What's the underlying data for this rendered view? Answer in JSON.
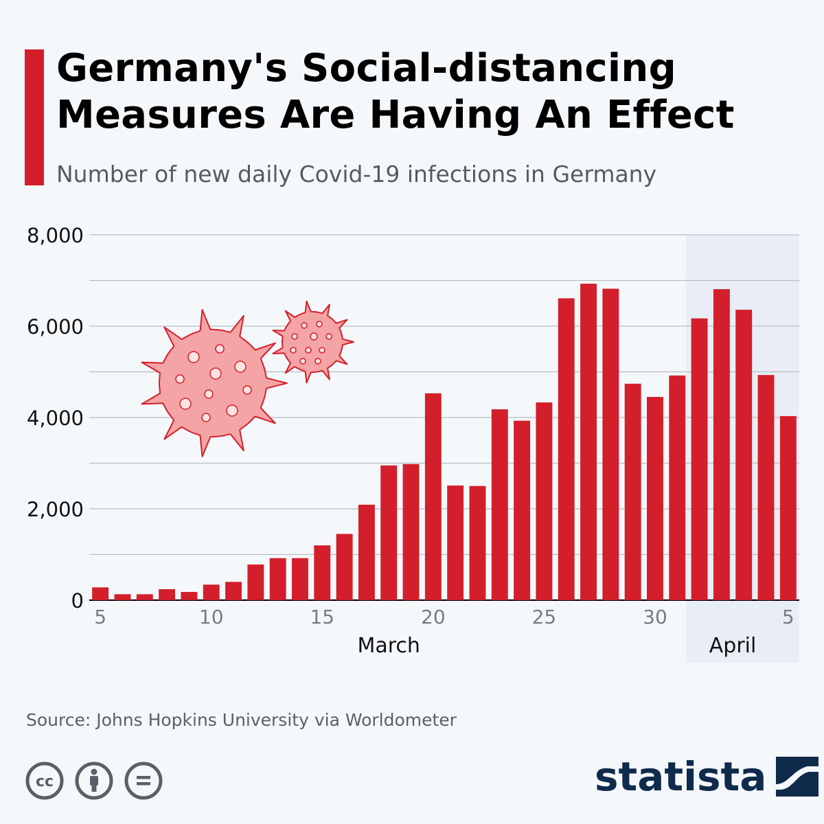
{
  "header": {
    "title": "Germany's Social-distancing Measures Are Having An Effect",
    "subtitle": "Number of new daily Covid-19 infections in Germany"
  },
  "chart_data": {
    "type": "bar",
    "title": "Germany's Social-distancing Measures Are Having An Effect",
    "subtitle": "Number of new daily Covid-19 infections in Germany",
    "categories": [
      "Mar 5",
      "Mar 6",
      "Mar 7",
      "Mar 8",
      "Mar 9",
      "Mar 10",
      "Mar 11",
      "Mar 12",
      "Mar 13",
      "Mar 14",
      "Mar 15",
      "Mar 16",
      "Mar 17",
      "Mar 18",
      "Mar 19",
      "Mar 20",
      "Mar 21",
      "Mar 22",
      "Mar 23",
      "Mar 24",
      "Mar 25",
      "Mar 26",
      "Mar 27",
      "Mar 28",
      "Mar 29",
      "Mar 30",
      "Mar 31",
      "Apr 1",
      "Apr 2",
      "Apr 3",
      "Apr 4",
      "Apr 5"
    ],
    "values": [
      280,
      130,
      130,
      240,
      180,
      340,
      400,
      780,
      920,
      920,
      1200,
      1450,
      2090,
      2950,
      2980,
      4530,
      2510,
      2500,
      4180,
      3930,
      4330,
      6610,
      6930,
      6820,
      4740,
      4450,
      4920,
      6170,
      6810,
      6360,
      4930,
      4030
    ],
    "ylim": [
      0,
      8000
    ],
    "yticks": [
      0,
      1000,
      2000,
      3000,
      4000,
      5000,
      6000,
      7000,
      8000
    ],
    "ytick_labels": [
      {
        "value": 0,
        "label": "0"
      },
      {
        "value": 2000,
        "label": "2,000"
      },
      {
        "value": 4000,
        "label": "4,000"
      },
      {
        "value": 6000,
        "label": "6,000"
      },
      {
        "value": 8000,
        "label": "8,000"
      }
    ],
    "xtick_labels": [
      {
        "index": 0,
        "label": "5"
      },
      {
        "index": 5,
        "label": "10"
      },
      {
        "index": 10,
        "label": "15"
      },
      {
        "index": 15,
        "label": "20"
      },
      {
        "index": 20,
        "label": "25"
      },
      {
        "index": 25,
        "label": "30"
      },
      {
        "index": 31,
        "label": "5"
      }
    ],
    "month_labels": [
      {
        "label": "March",
        "center_index": 13
      },
      {
        "label": "April",
        "center_index": 28.5
      }
    ],
    "highlight": {
      "from_index": 27,
      "to_index": 31
    },
    "grid": true,
    "colors": {
      "bar": "#d31f2b",
      "highlight": "#e9eef6",
      "grid": "#b9bcc0"
    }
  },
  "footer": {
    "source": "Source: Johns Hopkins University via Worldometer",
    "brand": "statista",
    "license_icons": [
      "cc-icon",
      "attribution-icon",
      "no-derivatives-icon"
    ]
  },
  "colors": {
    "accent": "#d31f2b",
    "brand": "#0f2b4c",
    "virus": "#f4a4a4"
  }
}
